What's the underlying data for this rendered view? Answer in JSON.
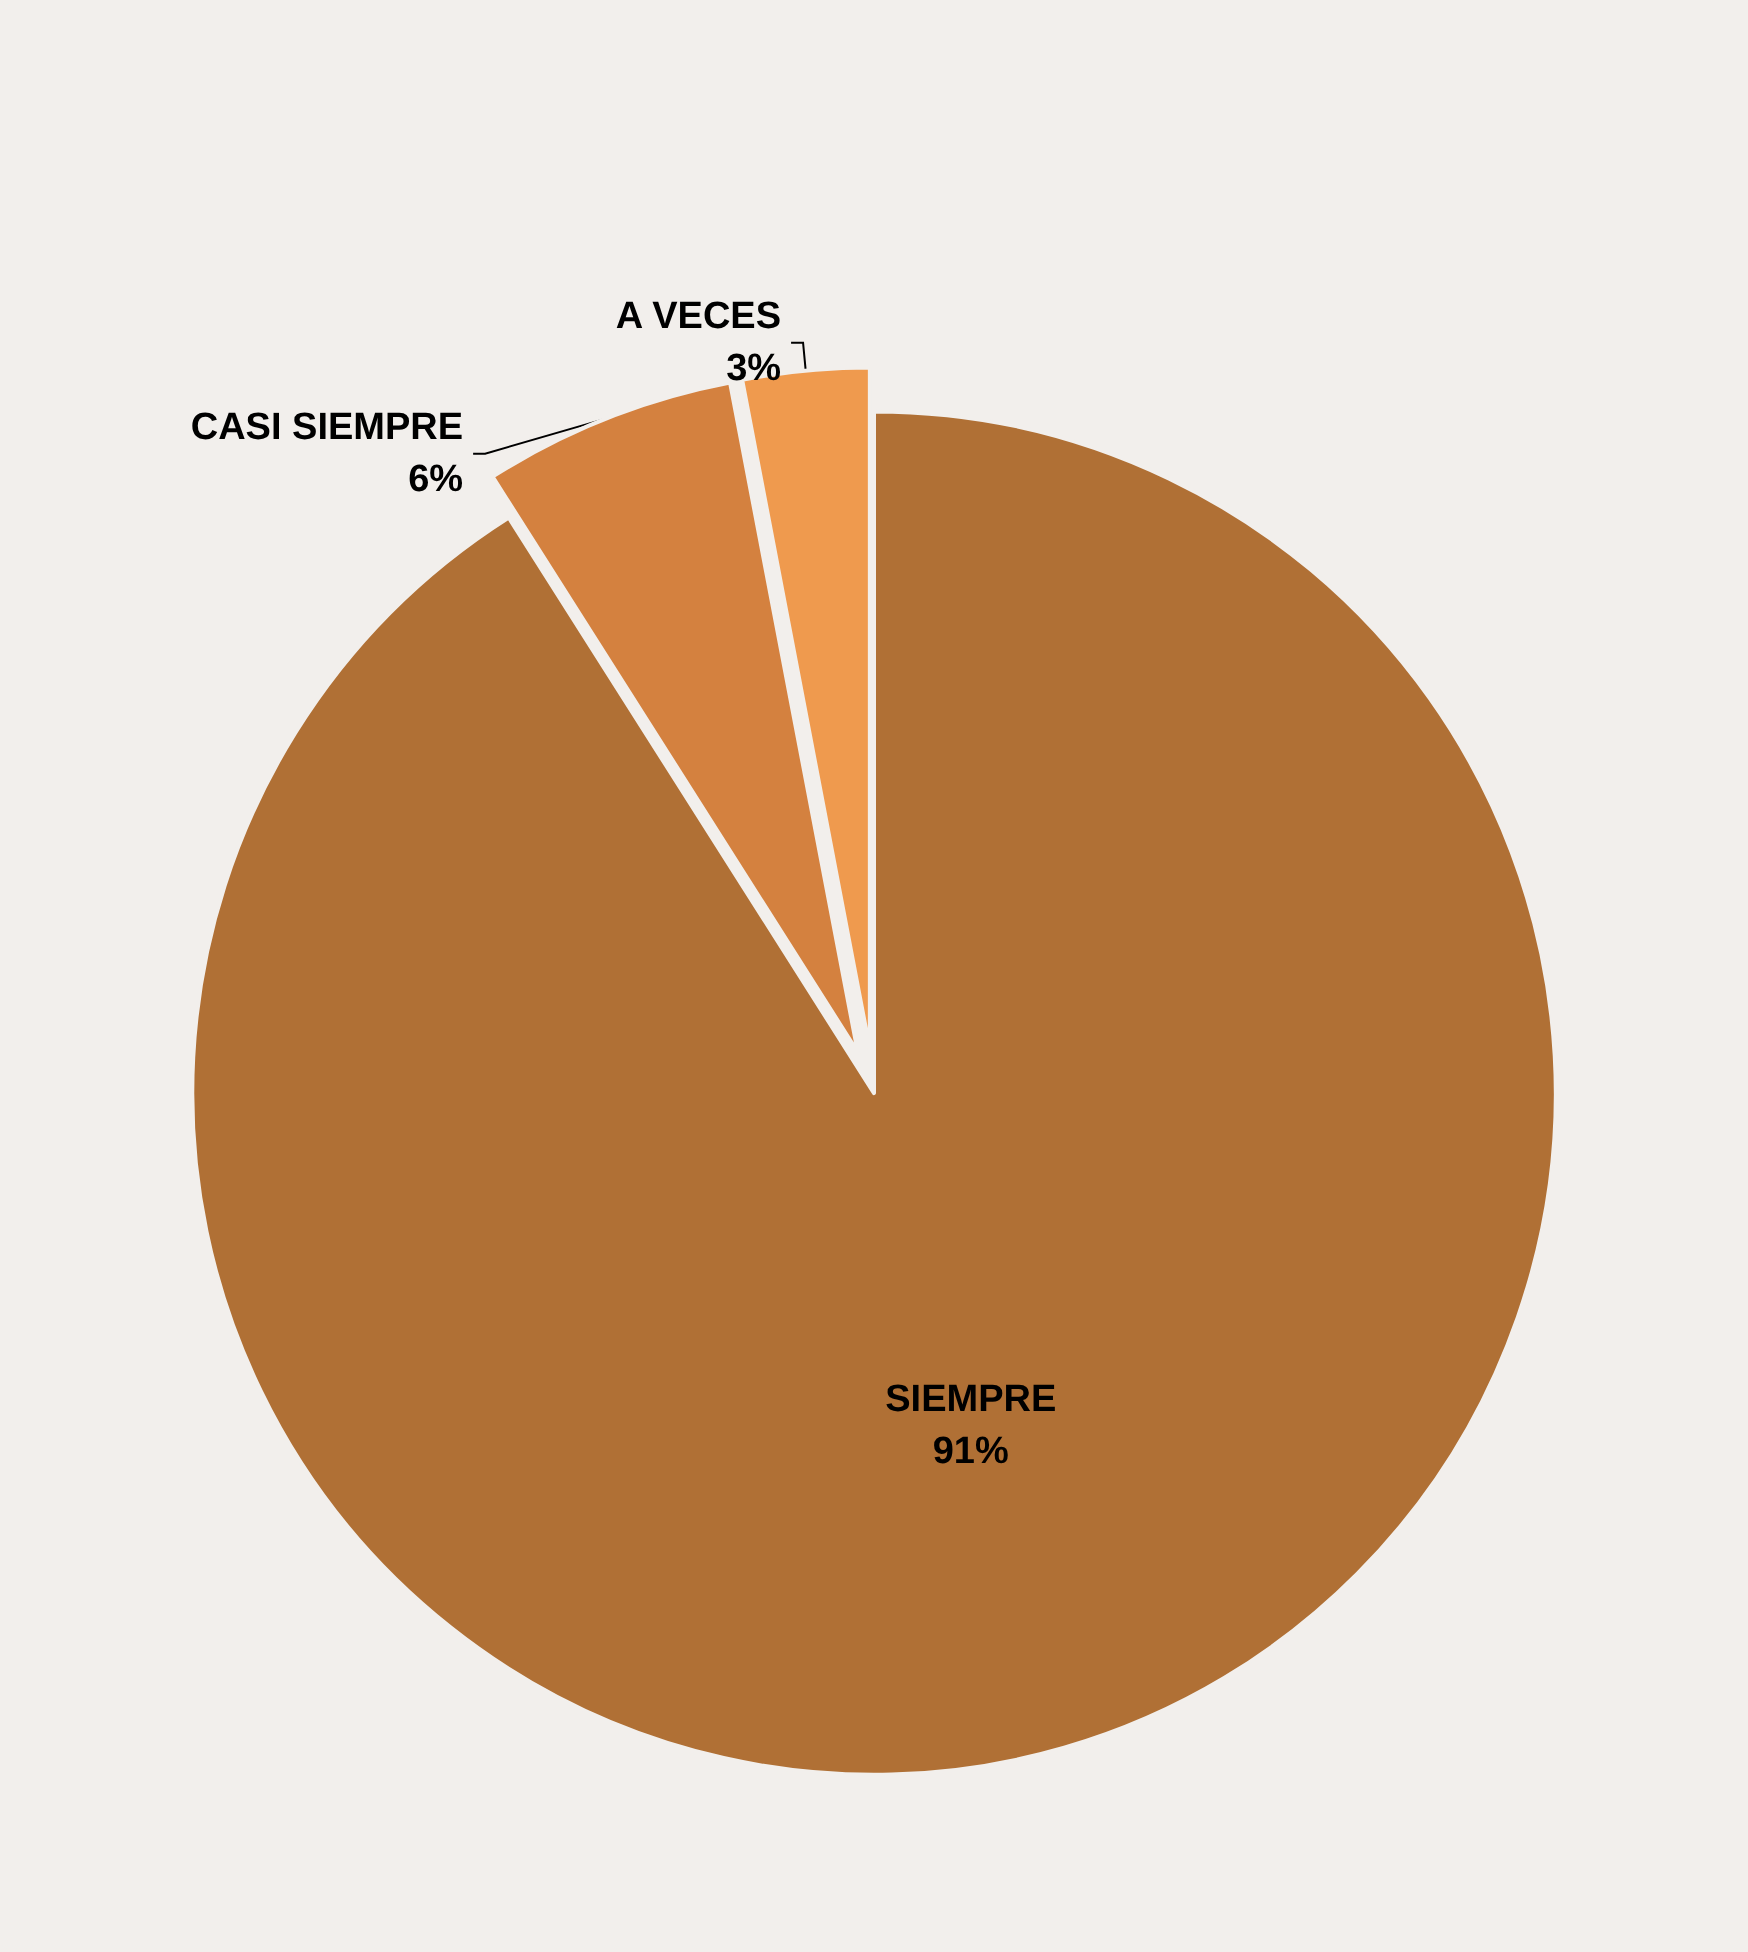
{
  "chart_data": {
    "type": "pie",
    "categories": [
      "SIEMPRE",
      "CASI SIEMPRE",
      "A VECES"
    ],
    "values": [
      91,
      6,
      3
    ],
    "value_labels": [
      "91%",
      "6%",
      "3%"
    ],
    "colors": [
      "#b07035",
      "#d4813f",
      "#ef9a4e"
    ],
    "legend": false
  }
}
